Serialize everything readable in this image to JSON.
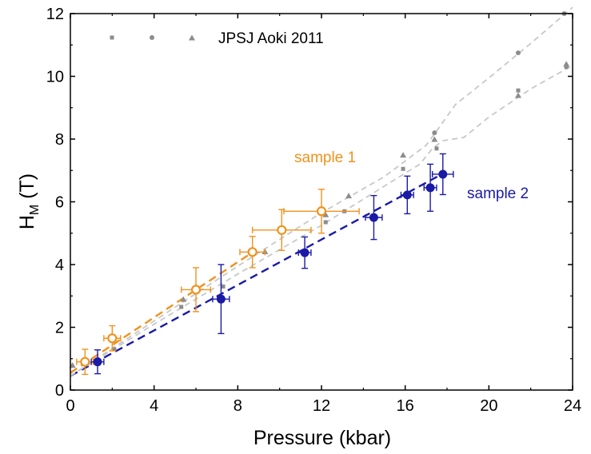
{
  "chart_data": {
    "type": "scatter",
    "xlabel": "Pressure (kbar)",
    "ylabel_main": "H",
    "ylabel_sub": "M",
    "ylabel_unit": " (T)",
    "xlim": [
      0,
      24
    ],
    "ylim": [
      0,
      12
    ],
    "xticks": [
      0,
      4,
      8,
      12,
      16,
      20,
      24
    ],
    "yticks": [
      0,
      2,
      4,
      6,
      8,
      10,
      12
    ],
    "grid": false,
    "legend": {
      "position": "top-left",
      "label": "JPSJ Aoki 2011"
    },
    "annotations": [
      {
        "text": "sample 1",
        "color": "#f0921e"
      },
      {
        "text": "sample 2",
        "color": "#1a1aa6"
      }
    ],
    "colors": {
      "sample1": "#f0921e",
      "sample2": "#1a1aa6",
      "reference": "#8c8c8c",
      "reference_line": "#c8c8c8"
    },
    "series": [
      {
        "name": "sample 1",
        "marker": "open-circle",
        "points": [
          {
            "x": 0.7,
            "y": 0.9,
            "xerr": 0.4,
            "yerr": 0.4
          },
          {
            "x": 2.0,
            "y": 1.65,
            "xerr": 0.4,
            "yerr": 0.4
          },
          {
            "x": 6.0,
            "y": 3.2,
            "xerr": 0.7,
            "yerr": 0.7
          },
          {
            "x": 8.7,
            "y": 4.4,
            "xerr": 0.6,
            "yerr": 0.5
          },
          {
            "x": 10.1,
            "y": 5.1,
            "xerr": 1.4,
            "yerr": 0.65
          },
          {
            "x": 12.0,
            "y": 5.7,
            "xerr": 1.8,
            "yerr": 0.7
          }
        ]
      },
      {
        "name": "sample 2",
        "marker": "filled-circle",
        "points": [
          {
            "x": 1.3,
            "y": 0.9,
            "xerr": 0.3,
            "yerr": 0.38
          },
          {
            "x": 7.2,
            "y": 2.9,
            "xerr": 0.4,
            "yerr": 1.1
          },
          {
            "x": 11.2,
            "y": 4.38,
            "xerr": 0.3,
            "yerr": 0.5
          },
          {
            "x": 14.5,
            "y": 5.5,
            "xerr": 0.4,
            "yerr": 0.7
          },
          {
            "x": 16.1,
            "y": 6.22,
            "xerr": 0.3,
            "yerr": 0.6
          },
          {
            "x": 17.2,
            "y": 6.45,
            "xerr": 0.3,
            "yerr": 0.75
          },
          {
            "x": 17.8,
            "y": 6.88,
            "xerr": 0.5,
            "yerr": 0.65
          }
        ]
      },
      {
        "name": "JPSJ Aoki 2011 squares",
        "marker": "square",
        "points": [
          {
            "x": 2.1,
            "y": 1.3
          },
          {
            "x": 5.3,
            "y": 2.65
          },
          {
            "x": 7.3,
            "y": 3.3
          },
          {
            "x": 12.2,
            "y": 5.35
          },
          {
            "x": 13.1,
            "y": 5.7
          },
          {
            "x": 15.9,
            "y": 7.05
          },
          {
            "x": 17.5,
            "y": 7.7
          },
          {
            "x": 21.4,
            "y": 9.55
          },
          {
            "x": 23.7,
            "y": 10.3
          }
        ]
      },
      {
        "name": "JPSJ Aoki 2011 circles",
        "marker": "circle",
        "points": [
          {
            "x": 17.4,
            "y": 8.2
          },
          {
            "x": 21.4,
            "y": 10.75
          },
          {
            "x": 23.6,
            "y": 12.0
          }
        ]
      },
      {
        "name": "JPSJ Aoki 2011 triangles",
        "marker": "triangle",
        "points": [
          {
            "x": 0.1,
            "y": 0.8
          },
          {
            "x": 5.4,
            "y": 2.9
          },
          {
            "x": 9.3,
            "y": 4.42
          },
          {
            "x": 12.2,
            "y": 5.6
          },
          {
            "x": 13.3,
            "y": 6.2
          },
          {
            "x": 15.9,
            "y": 7.5
          },
          {
            "x": 17.4,
            "y": 8.0
          },
          {
            "x": 21.4,
            "y": 9.4
          },
          {
            "x": 23.7,
            "y": 10.4
          }
        ]
      }
    ],
    "fit_lines": [
      {
        "name": "sample 1 fit",
        "color": "#f0921e",
        "points": [
          [
            0,
            0.55
          ],
          [
            8.5,
            4.3
          ]
        ]
      },
      {
        "name": "sample 2 fit",
        "color": "#1a1aa6",
        "points": [
          [
            0,
            0.45
          ],
          [
            17.8,
            6.9
          ]
        ]
      },
      {
        "name": "reference upper",
        "color": "#c8c8c8",
        "points": [
          [
            0,
            0.45
          ],
          [
            4,
            2.2
          ],
          [
            8,
            3.95
          ],
          [
            12,
            5.65
          ],
          [
            15,
            6.8
          ],
          [
            17,
            7.8
          ],
          [
            17.6,
            8.35
          ],
          [
            18.4,
            9.1
          ],
          [
            20,
            9.95
          ],
          [
            22,
            11.05
          ],
          [
            24,
            12.2
          ]
        ]
      },
      {
        "name": "reference lower",
        "color": "#c8c8c8",
        "points": [
          [
            0,
            0.45
          ],
          [
            4,
            2.1
          ],
          [
            8,
            3.7
          ],
          [
            12,
            5.25
          ],
          [
            15,
            6.5
          ],
          [
            16.7,
            7.2
          ],
          [
            17.3,
            7.7
          ],
          [
            17.8,
            7.95
          ],
          [
            18.8,
            8.05
          ],
          [
            20,
            8.7
          ],
          [
            22,
            9.6
          ],
          [
            24,
            10.35
          ]
        ]
      }
    ]
  }
}
